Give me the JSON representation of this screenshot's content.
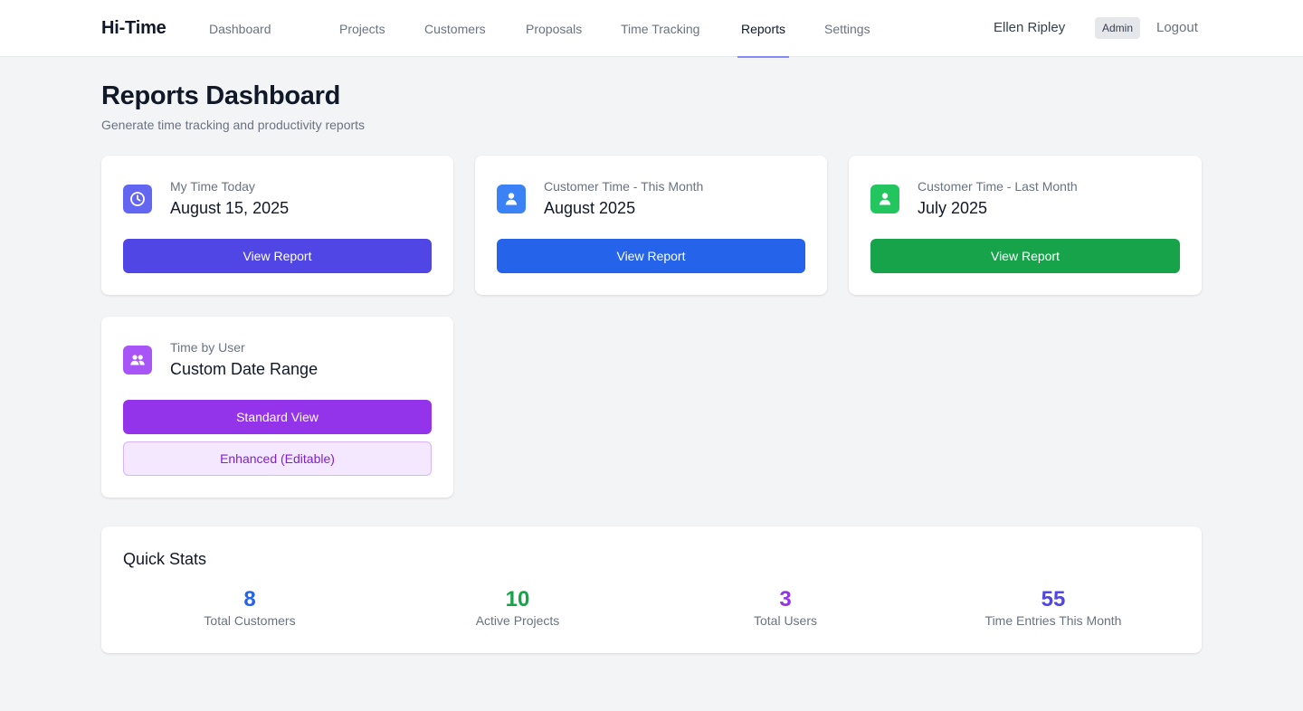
{
  "nav": {
    "brand": "Hi-Time",
    "links": [
      {
        "label": "Dashboard"
      },
      {
        "label": "Projects"
      },
      {
        "label": "Customers"
      },
      {
        "label": "Proposals"
      },
      {
        "label": "Time Tracking"
      },
      {
        "label": "Reports",
        "active": true
      },
      {
        "label": "Settings"
      }
    ],
    "user_name": "Ellen Ripley",
    "role": "Admin",
    "logout": "Logout"
  },
  "header": {
    "title": "Reports Dashboard",
    "subtitle": "Generate time tracking and productivity reports"
  },
  "cards": [
    {
      "icon": "clock-icon",
      "label": "My Time Today",
      "value": "August 15, 2025",
      "button": "View Report",
      "color": "#4f46e5",
      "icon_bg": "#6366f1"
    },
    {
      "icon": "user-icon",
      "label": "Customer Time - This Month",
      "value": "August 2025",
      "button": "View Report",
      "color": "#2563eb",
      "icon_bg": "#3b82f6"
    },
    {
      "icon": "user-icon",
      "label": "Customer Time - Last Month",
      "value": "July 2025",
      "button": "View Report",
      "color": "#16a34a",
      "icon_bg": "#22c55e"
    },
    {
      "icon": "users-icon",
      "label": "Time by User",
      "value": "Custom Date Range",
      "button": "Standard View",
      "secondary_button": "Enhanced (Editable)",
      "color": "#9333ea",
      "icon_bg": "#a855f7"
    }
  ],
  "quick_stats": {
    "title": "Quick Stats",
    "items": [
      {
        "value": "8",
        "label": "Total Customers",
        "color": "#2563eb"
      },
      {
        "value": "10",
        "label": "Active Projects",
        "color": "#16a34a"
      },
      {
        "value": "3",
        "label": "Total Users",
        "color": "#9333ea"
      },
      {
        "value": "55",
        "label": "Time Entries This Month",
        "color": "#4f46e5"
      }
    ]
  }
}
